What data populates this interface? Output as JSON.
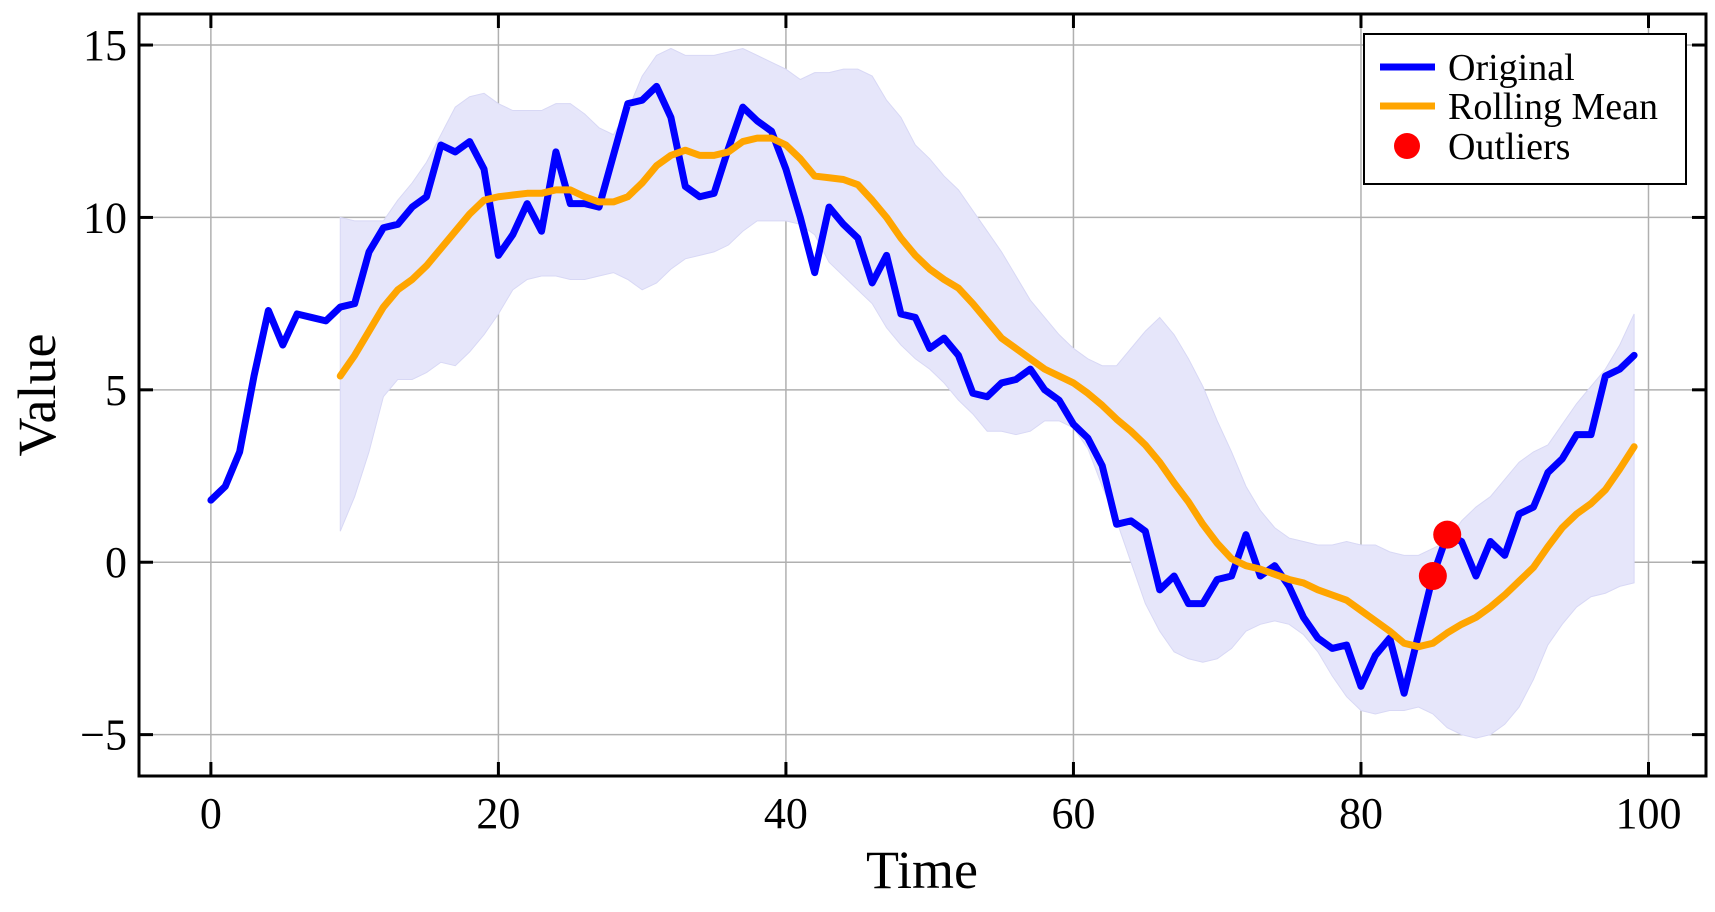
{
  "chart_data": {
    "type": "line",
    "title": "",
    "xlabel": "Time",
    "ylabel": "Value",
    "xlim": [
      -5,
      104
    ],
    "ylim": [
      -6.2,
      15.9
    ],
    "xticks": [
      0,
      20,
      40,
      60,
      80,
      100
    ],
    "yticks": [
      -5,
      0,
      5,
      10,
      15
    ],
    "xtick_labels": [
      "0",
      "20",
      "40",
      "60",
      "80",
      "100"
    ],
    "ytick_labels": [
      "−5",
      "0",
      "5",
      "10",
      "15"
    ],
    "grid": true,
    "legend_position": "top-right",
    "colors": {
      "original": "#0000ff",
      "rolling_mean": "#ffa500",
      "outliers": "#ff0000",
      "band": "#e6e6fa"
    },
    "series": [
      {
        "name": "Original",
        "type": "line",
        "x": [
          0,
          1,
          2,
          3,
          4,
          5,
          6,
          7,
          8,
          9,
          10,
          11,
          12,
          13,
          14,
          15,
          16,
          17,
          18,
          19,
          20,
          21,
          22,
          23,
          24,
          25,
          26,
          27,
          28,
          29,
          30,
          31,
          32,
          33,
          34,
          35,
          36,
          37,
          38,
          39,
          40,
          41,
          42,
          43,
          44,
          45,
          46,
          47,
          48,
          49,
          50,
          51,
          52,
          53,
          54,
          55,
          56,
          57,
          58,
          59,
          60,
          61,
          62,
          63,
          64,
          65,
          66,
          67,
          68,
          69,
          70,
          71,
          72,
          73,
          74,
          75,
          76,
          77,
          78,
          79,
          80,
          81,
          82,
          83,
          84,
          85,
          86,
          87,
          88,
          89,
          90,
          91,
          92,
          93,
          94,
          95,
          96,
          97,
          98,
          99
        ],
        "values": [
          1.8,
          2.2,
          3.2,
          5.4,
          7.3,
          6.3,
          7.2,
          7.1,
          7.0,
          7.4,
          7.5,
          9.0,
          9.7,
          9.8,
          10.3,
          10.6,
          12.1,
          11.9,
          12.2,
          11.4,
          8.9,
          9.5,
          10.4,
          9.6,
          11.9,
          10.4,
          10.4,
          10.3,
          11.8,
          13.3,
          13.4,
          13.8,
          12.9,
          10.9,
          10.6,
          10.7,
          12.0,
          13.2,
          12.8,
          12.5,
          11.4,
          10.0,
          8.4,
          10.3,
          9.8,
          9.4,
          8.1,
          8.9,
          7.2,
          7.1,
          6.2,
          6.5,
          6.0,
          4.9,
          4.8,
          5.2,
          5.3,
          5.6,
          5.0,
          4.7,
          4.0,
          3.6,
          2.8,
          1.1,
          1.2,
          0.9,
          -0.8,
          -0.4,
          -1.2,
          -1.2,
          -0.5,
          -0.4,
          0.8,
          -0.4,
          -0.1,
          -0.7,
          -1.6,
          -2.2,
          -2.5,
          -2.4,
          -3.6,
          -2.7,
          -2.2,
          -3.8,
          -2.1,
          -0.4,
          0.8,
          0.6,
          -0.4,
          0.6,
          0.2,
          1.4,
          1.6,
          2.6,
          3.0,
          3.7,
          3.7,
          5.4,
          5.6,
          6.0
        ]
      },
      {
        "name": "Rolling Mean",
        "type": "line",
        "x": [
          9,
          10,
          11,
          12,
          13,
          14,
          15,
          16,
          17,
          18,
          19,
          20,
          21,
          22,
          23,
          24,
          25,
          26,
          27,
          28,
          29,
          30,
          31,
          32,
          33,
          34,
          35,
          36,
          37,
          38,
          39,
          40,
          41,
          42,
          43,
          44,
          45,
          46,
          47,
          48,
          49,
          50,
          51,
          52,
          53,
          54,
          55,
          56,
          57,
          58,
          59,
          60,
          61,
          62,
          63,
          64,
          65,
          66,
          67,
          68,
          69,
          70,
          71,
          72,
          73,
          74,
          75,
          76,
          77,
          78,
          79,
          80,
          81,
          82,
          83,
          84,
          85,
          86,
          87,
          88,
          89,
          90,
          91,
          92,
          93,
          94,
          95,
          96,
          97,
          98,
          99
        ],
        "values": [
          5.4,
          6.0,
          6.7,
          7.4,
          7.9,
          8.2,
          8.6,
          9.1,
          9.6,
          10.1,
          10.5,
          10.6,
          10.65,
          10.7,
          10.7,
          10.8,
          10.8,
          10.6,
          10.45,
          10.45,
          10.6,
          11.0,
          11.5,
          11.8,
          11.95,
          11.8,
          11.8,
          11.9,
          12.2,
          12.3,
          12.3,
          12.1,
          11.7,
          11.2,
          11.15,
          11.1,
          10.95,
          10.5,
          10.0,
          9.4,
          8.9,
          8.5,
          8.2,
          7.95,
          7.5,
          7.0,
          6.5,
          6.2,
          5.9,
          5.6,
          5.4,
          5.2,
          4.9,
          4.55,
          4.15,
          3.8,
          3.4,
          2.9,
          2.3,
          1.75,
          1.1,
          0.55,
          0.1,
          -0.1,
          -0.2,
          -0.35,
          -0.5,
          -0.6,
          -0.8,
          -0.95,
          -1.1,
          -1.4,
          -1.7,
          -2.0,
          -2.35,
          -2.45,
          -2.35,
          -2.05,
          -1.8,
          -1.6,
          -1.3,
          -0.95,
          -0.55,
          -0.15,
          0.45,
          1.0,
          1.4,
          1.7,
          2.1,
          2.7,
          3.35
        ]
      },
      {
        "name": "Outliers",
        "type": "scatter",
        "x": [
          85,
          86
        ],
        "values": [
          -0.4,
          0.8
        ]
      }
    ],
    "band": {
      "x": [
        9,
        10,
        11,
        12,
        13,
        14,
        15,
        16,
        17,
        18,
        19,
        20,
        21,
        22,
        23,
        24,
        25,
        26,
        27,
        28,
        29,
        30,
        31,
        32,
        33,
        34,
        35,
        36,
        37,
        38,
        39,
        40,
        41,
        42,
        43,
        44,
        45,
        46,
        47,
        48,
        49,
        50,
        51,
        52,
        53,
        54,
        55,
        56,
        57,
        58,
        59,
        60,
        61,
        62,
        63,
        64,
        65,
        66,
        67,
        68,
        69,
        70,
        71,
        72,
        73,
        74,
        75,
        76,
        77,
        78,
        79,
        80,
        81,
        82,
        83,
        84,
        85,
        86,
        87,
        88,
        89,
        90,
        91,
        92,
        93,
        94,
        95,
        96,
        97,
        98,
        99
      ],
      "upper": [
        10.0,
        9.9,
        9.9,
        9.9,
        10.5,
        11.0,
        11.6,
        12.4,
        13.2,
        13.5,
        13.6,
        13.3,
        13.1,
        13.1,
        13.1,
        13.3,
        13.3,
        13.0,
        12.6,
        12.4,
        13.1,
        14.1,
        14.7,
        14.9,
        14.7,
        14.7,
        14.7,
        14.8,
        14.9,
        14.7,
        14.5,
        14.3,
        14.0,
        14.2,
        14.2,
        14.3,
        14.3,
        14.1,
        13.4,
        12.9,
        12.1,
        11.7,
        11.2,
        10.8,
        10.2,
        9.6,
        9.0,
        8.3,
        7.6,
        7.1,
        6.6,
        6.2,
        5.9,
        5.7,
        5.7,
        6.2,
        6.7,
        7.1,
        6.6,
        5.9,
        5.1,
        4.1,
        3.2,
        2.2,
        1.5,
        1.0,
        0.7,
        0.6,
        0.5,
        0.5,
        0.6,
        0.5,
        0.5,
        0.3,
        0.2,
        0.2,
        0.4,
        0.6,
        1.2,
        1.6,
        1.9,
        2.4,
        2.9,
        3.2,
        3.4,
        4.0,
        4.6,
        5.1,
        5.6,
        6.3,
        7.2
      ],
      "lower": [
        0.9,
        1.9,
        3.2,
        4.8,
        5.3,
        5.3,
        5.5,
        5.8,
        5.7,
        6.1,
        6.6,
        7.2,
        7.9,
        8.2,
        8.3,
        8.3,
        8.2,
        8.2,
        8.3,
        8.4,
        8.2,
        7.9,
        8.1,
        8.5,
        8.8,
        8.9,
        9.0,
        9.2,
        9.6,
        9.9,
        9.9,
        9.9,
        9.8,
        9.5,
        8.7,
        8.3,
        7.9,
        7.5,
        6.8,
        6.3,
        5.9,
        5.6,
        5.2,
        4.7,
        4.3,
        3.8,
        3.8,
        3.7,
        3.8,
        4.1,
        4.1,
        3.9,
        3.3,
        2.2,
        1.2,
        0.0,
        -1.2,
        -2.0,
        -2.6,
        -2.8,
        -2.9,
        -2.8,
        -2.5,
        -2.0,
        -1.8,
        -1.7,
        -1.8,
        -2.1,
        -2.6,
        -3.3,
        -3.9,
        -4.3,
        -4.4,
        -4.3,
        -4.3,
        -4.2,
        -4.4,
        -4.8,
        -5.0,
        -5.1,
        -5.0,
        -4.7,
        -4.2,
        -3.4,
        -2.4,
        -1.8,
        -1.3,
        -1.0,
        -0.9,
        -0.7,
        -0.6
      ]
    },
    "legend": {
      "entries": [
        {
          "label": "Original",
          "kind": "line",
          "color": "#0000ff"
        },
        {
          "label": "Rolling Mean",
          "kind": "line",
          "color": "#ffa500"
        },
        {
          "label": "Outliers",
          "kind": "marker",
          "color": "#ff0000"
        }
      ]
    }
  }
}
